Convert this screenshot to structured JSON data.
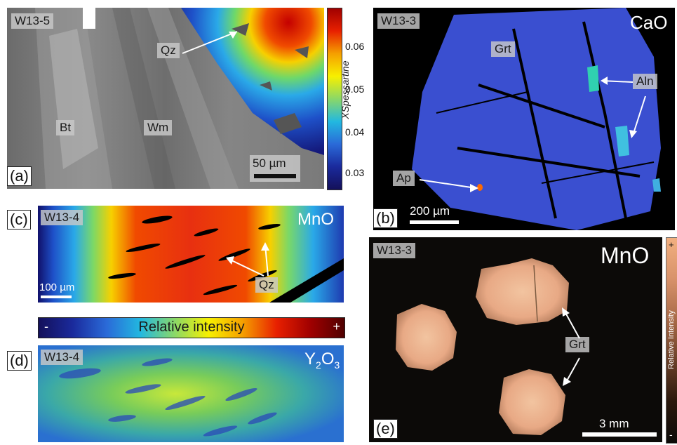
{
  "panels": {
    "a": {
      "letter": "(a)",
      "sample": "W13-5",
      "minerals": {
        "qz": "Qz",
        "bt": "Bt",
        "wm": "Wm"
      },
      "scale": "50 µm",
      "colorbar": {
        "label": "XSpessartine",
        "ticks": [
          "0.06",
          "0.05",
          "0.04",
          "0.03"
        ]
      }
    },
    "b": {
      "letter": "(b)",
      "sample": "W13-3",
      "oxide": "CaO",
      "minerals": {
        "grt": "Grt",
        "aln": "Aln",
        "ap": "Ap"
      },
      "scale": "200 µm"
    },
    "c": {
      "letter": "(c)",
      "sample": "W13-4",
      "oxide": "MnO",
      "minerals": {
        "qz": "Qz"
      },
      "scale": "100 µm"
    },
    "intensity_bar": {
      "label": "Relative intensity",
      "minus": "-",
      "plus": "+"
    },
    "d": {
      "letter": "(d)",
      "sample": "W13-4",
      "oxide_main": "Y",
      "oxide_sub1": "2",
      "oxide_mid": "O",
      "oxide_sub2": "3"
    },
    "e": {
      "letter": "(e)",
      "sample": "W13-3",
      "oxide": "MnO",
      "minerals": {
        "grt": "Grt"
      },
      "scale": "3 mm",
      "colorbar": {
        "label": "Relative Intensity",
        "plus": "+",
        "minus": "-"
      }
    }
  },
  "colors": {
    "jet_low": "#1a1a8c",
    "jet_high": "#b00000",
    "cao_blue": "#3a4fd0",
    "mno_garnet": "#e8a985"
  }
}
